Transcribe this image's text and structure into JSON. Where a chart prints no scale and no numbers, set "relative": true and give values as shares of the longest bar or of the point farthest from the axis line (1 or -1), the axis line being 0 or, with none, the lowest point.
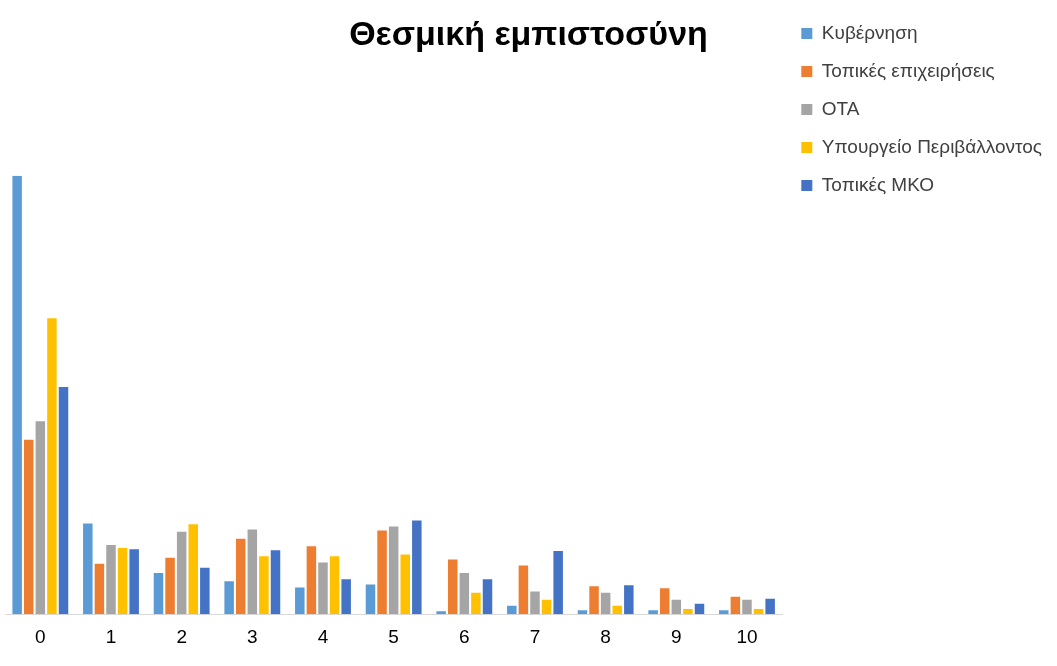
{
  "chart_data": {
    "type": "bar",
    "title": "Θεσμική εμπιστοσύνη",
    "relative": true,
    "legend": "top right",
    "grid": false,
    "categories": [
      "0",
      "1",
      "2",
      "3",
      "4",
      "5",
      "6",
      "7",
      "8",
      "9",
      "10"
    ],
    "series": [
      {
        "name": "Κυβέρνηση",
        "color": "#5b9bd5",
        "values": [
          1,
          0.207,
          0.094,
          0.075,
          0.061,
          0.068,
          0.007,
          0.019,
          0.009,
          0.009,
          0.009
        ]
      },
      {
        "name": "Τοπικές επιχειρήσεις",
        "color": "#ed7d31",
        "values": [
          0.398,
          0.115,
          0.129,
          0.172,
          0.155,
          0.191,
          0.125,
          0.111,
          0.064,
          0.059,
          0.04
        ]
      },
      {
        "name": "ΟΤΑ",
        "color": "#a5a5a5",
        "values": [
          0.44,
          0.158,
          0.188,
          0.193,
          0.118,
          0.2,
          0.094,
          0.052,
          0.049,
          0.033,
          0.033
        ]
      },
      {
        "name": "Υπουργείο Περιβάλλοντος",
        "color": "#ffc000",
        "values": [
          0.675,
          0.151,
          0.205,
          0.132,
          0.132,
          0.136,
          0.049,
          0.033,
          0.019,
          0.012,
          0.012
        ]
      },
      {
        "name": "Τοπικές ΜΚΟ",
        "color": "#4472c4",
        "values": [
          0.518,
          0.148,
          0.106,
          0.146,
          0.08,
          0.214,
          0.08,
          0.144,
          0.066,
          0.024,
          0.035
        ]
      }
    ]
  }
}
